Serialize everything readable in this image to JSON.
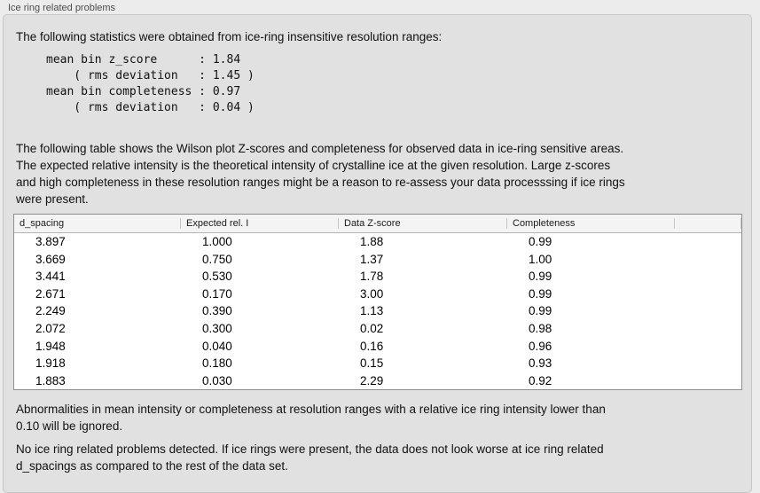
{
  "panel": {
    "title": "Ice ring related problems"
  },
  "intro": "The following statistics were obtained from ice-ring insensitive resolution ranges:",
  "stats_block": "mean bin z_score      : 1.84\n    ( rms deviation   : 1.45 )\nmean bin completeness : 0.97\n    ( rms deviation   : 0.04 )",
  "table_description": "The following table shows the Wilson plot Z-scores and completeness for observed data in ice-ring sensitive areas.\nThe expected relative intensity is the theoretical intensity of crystalline ice at the given resolution. Large z-scores\nand high completeness in these resolution ranges might be a reason to re-assess your data processsing if ice rings\nwere present.",
  "table": {
    "columns": [
      "d_spacing",
      "Expected rel. I",
      "Data Z-score",
      "Completeness",
      ""
    ],
    "rows": [
      [
        "3.897",
        "1.000",
        "1.88",
        "0.99"
      ],
      [
        "3.669",
        "0.750",
        "1.37",
        "1.00"
      ],
      [
        "3.441",
        "0.530",
        "1.78",
        "0.99"
      ],
      [
        "2.671",
        "0.170",
        "3.00",
        "0.99"
      ],
      [
        "2.249",
        "0.390",
        "1.13",
        "0.99"
      ],
      [
        "2.072",
        "0.300",
        "0.02",
        "0.98"
      ],
      [
        "1.948",
        "0.040",
        "0.16",
        "0.96"
      ],
      [
        "1.918",
        "0.180",
        "0.15",
        "0.93"
      ],
      [
        "1.883",
        "0.030",
        "2.29",
        "0.92"
      ]
    ]
  },
  "note_ignore": "Abnormalities in mean intensity or completeness at resolution ranges with a relative ice ring intensity lower than\n0.10 will be ignored.",
  "conclusion": "No ice ring related problems detected. If ice rings were present, the data does not look worse at ice ring related\nd_spacings as compared to the rest of the data set.",
  "colors": {
    "page_bg": "#ececec",
    "panel_bg": "#e1e1e1",
    "table_bg": "#ffffff",
    "table_header_bg": "#f4f4f4"
  }
}
